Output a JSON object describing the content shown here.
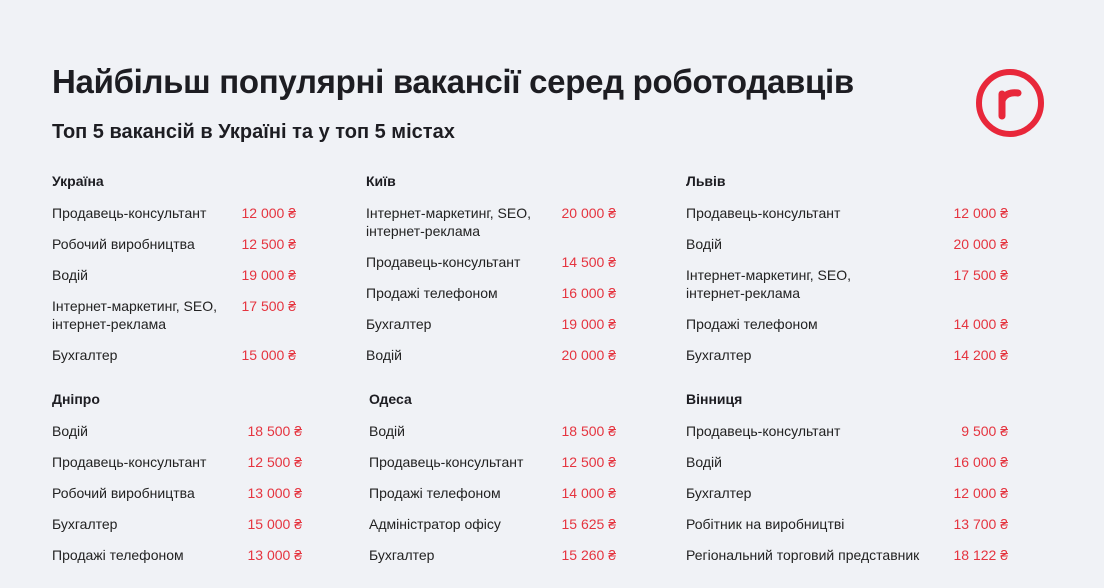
{
  "header": {
    "title": "Найбільш популярні вакансії серед роботодавців",
    "subtitle": "Топ 5 вакансій в Україні та у топ 5 містах"
  },
  "logo": {
    "icon": "r-logo-icon",
    "letter": "r",
    "color": "#e8273a"
  },
  "colors": {
    "salary": "#e5343f",
    "background": "#f0f2f6"
  },
  "blocks": [
    {
      "city": "Україна",
      "rows": [
        {
          "job": "Продавець-консультант",
          "job2": "",
          "salary": "12 000 ₴"
        },
        {
          "job": "Робочий виробництва",
          "job2": "",
          "salary": "12 500 ₴"
        },
        {
          "job": "Водій",
          "job2": "",
          "salary": "19 000 ₴"
        },
        {
          "job": "Інтернет-маркетинг, SEO,",
          "job2": "інтернет-реклама",
          "salary": "17 500 ₴"
        },
        {
          "job": "Бухгалтер",
          "job2": "",
          "salary": "15 000 ₴"
        }
      ]
    },
    {
      "city": "Київ",
      "rows": [
        {
          "job": "Інтернет-маркетинг, SEO,",
          "job2": "інтернет-реклама",
          "salary": "20 000 ₴"
        },
        {
          "job": "Продавець-консультант",
          "job2": "",
          "salary": "14 500 ₴"
        },
        {
          "job": "Продажі телефоном",
          "job2": "",
          "salary": "16 000 ₴"
        },
        {
          "job": "Бухгалтер",
          "job2": "",
          "salary": "19 000 ₴"
        },
        {
          "job": "Водій",
          "job2": "",
          "salary": "20 000 ₴"
        }
      ]
    },
    {
      "city": "Львів",
      "rows": [
        {
          "job": "Продавець-консультант",
          "job2": "",
          "salary": "12 000 ₴"
        },
        {
          "job": "Водій",
          "job2": "",
          "salary": "20 000 ₴"
        },
        {
          "job": "Інтернет-маркетинг, SEO,",
          "job2": "інтернет-реклама",
          "salary": "17 500 ₴"
        },
        {
          "job": "Продажі телефоном",
          "job2": "",
          "salary": "14 000 ₴"
        },
        {
          "job": "Бухгалтер",
          "job2": "",
          "salary": "14 200 ₴"
        }
      ]
    },
    {
      "city": "Дніпро",
      "rows": [
        {
          "job": "Водій",
          "job2": "",
          "salary": "18 500 ₴"
        },
        {
          "job": "Продавець-консультант",
          "job2": "",
          "salary": "12 500 ₴"
        },
        {
          "job": "Робочий виробництва",
          "job2": "",
          "salary": "13 000 ₴"
        },
        {
          "job": "Бухгалтер",
          "job2": "",
          "salary": "15 000 ₴"
        },
        {
          "job": "Продажі телефоном",
          "job2": "",
          "salary": "13 000 ₴"
        }
      ]
    },
    {
      "city": "Одеса",
      "rows": [
        {
          "job": "Водій",
          "job2": "",
          "salary": "18 500 ₴"
        },
        {
          "job": "Продавець-консультант",
          "job2": "",
          "salary": "12 500 ₴"
        },
        {
          "job": "Продажі телефоном",
          "job2": "",
          "salary": "14 000 ₴"
        },
        {
          "job": "Адміністратор офісу",
          "job2": "",
          "salary": "15 625 ₴"
        },
        {
          "job": "Бухгалтер",
          "job2": "",
          "salary": "15 260 ₴"
        }
      ]
    },
    {
      "city": "Вінниця",
      "rows": [
        {
          "job": "Продавець-консультант",
          "job2": "",
          "salary": "9 500 ₴"
        },
        {
          "job": "Водій",
          "job2": "",
          "salary": "16 000 ₴"
        },
        {
          "job": "Бухгалтер",
          "job2": "",
          "salary": "12 000 ₴"
        },
        {
          "job": "Робітник на виробництві",
          "job2": "",
          "salary": "13 700 ₴"
        },
        {
          "job": "Регіональний торговий представник",
          "job2": "",
          "salary": "18 122 ₴"
        }
      ]
    }
  ]
}
